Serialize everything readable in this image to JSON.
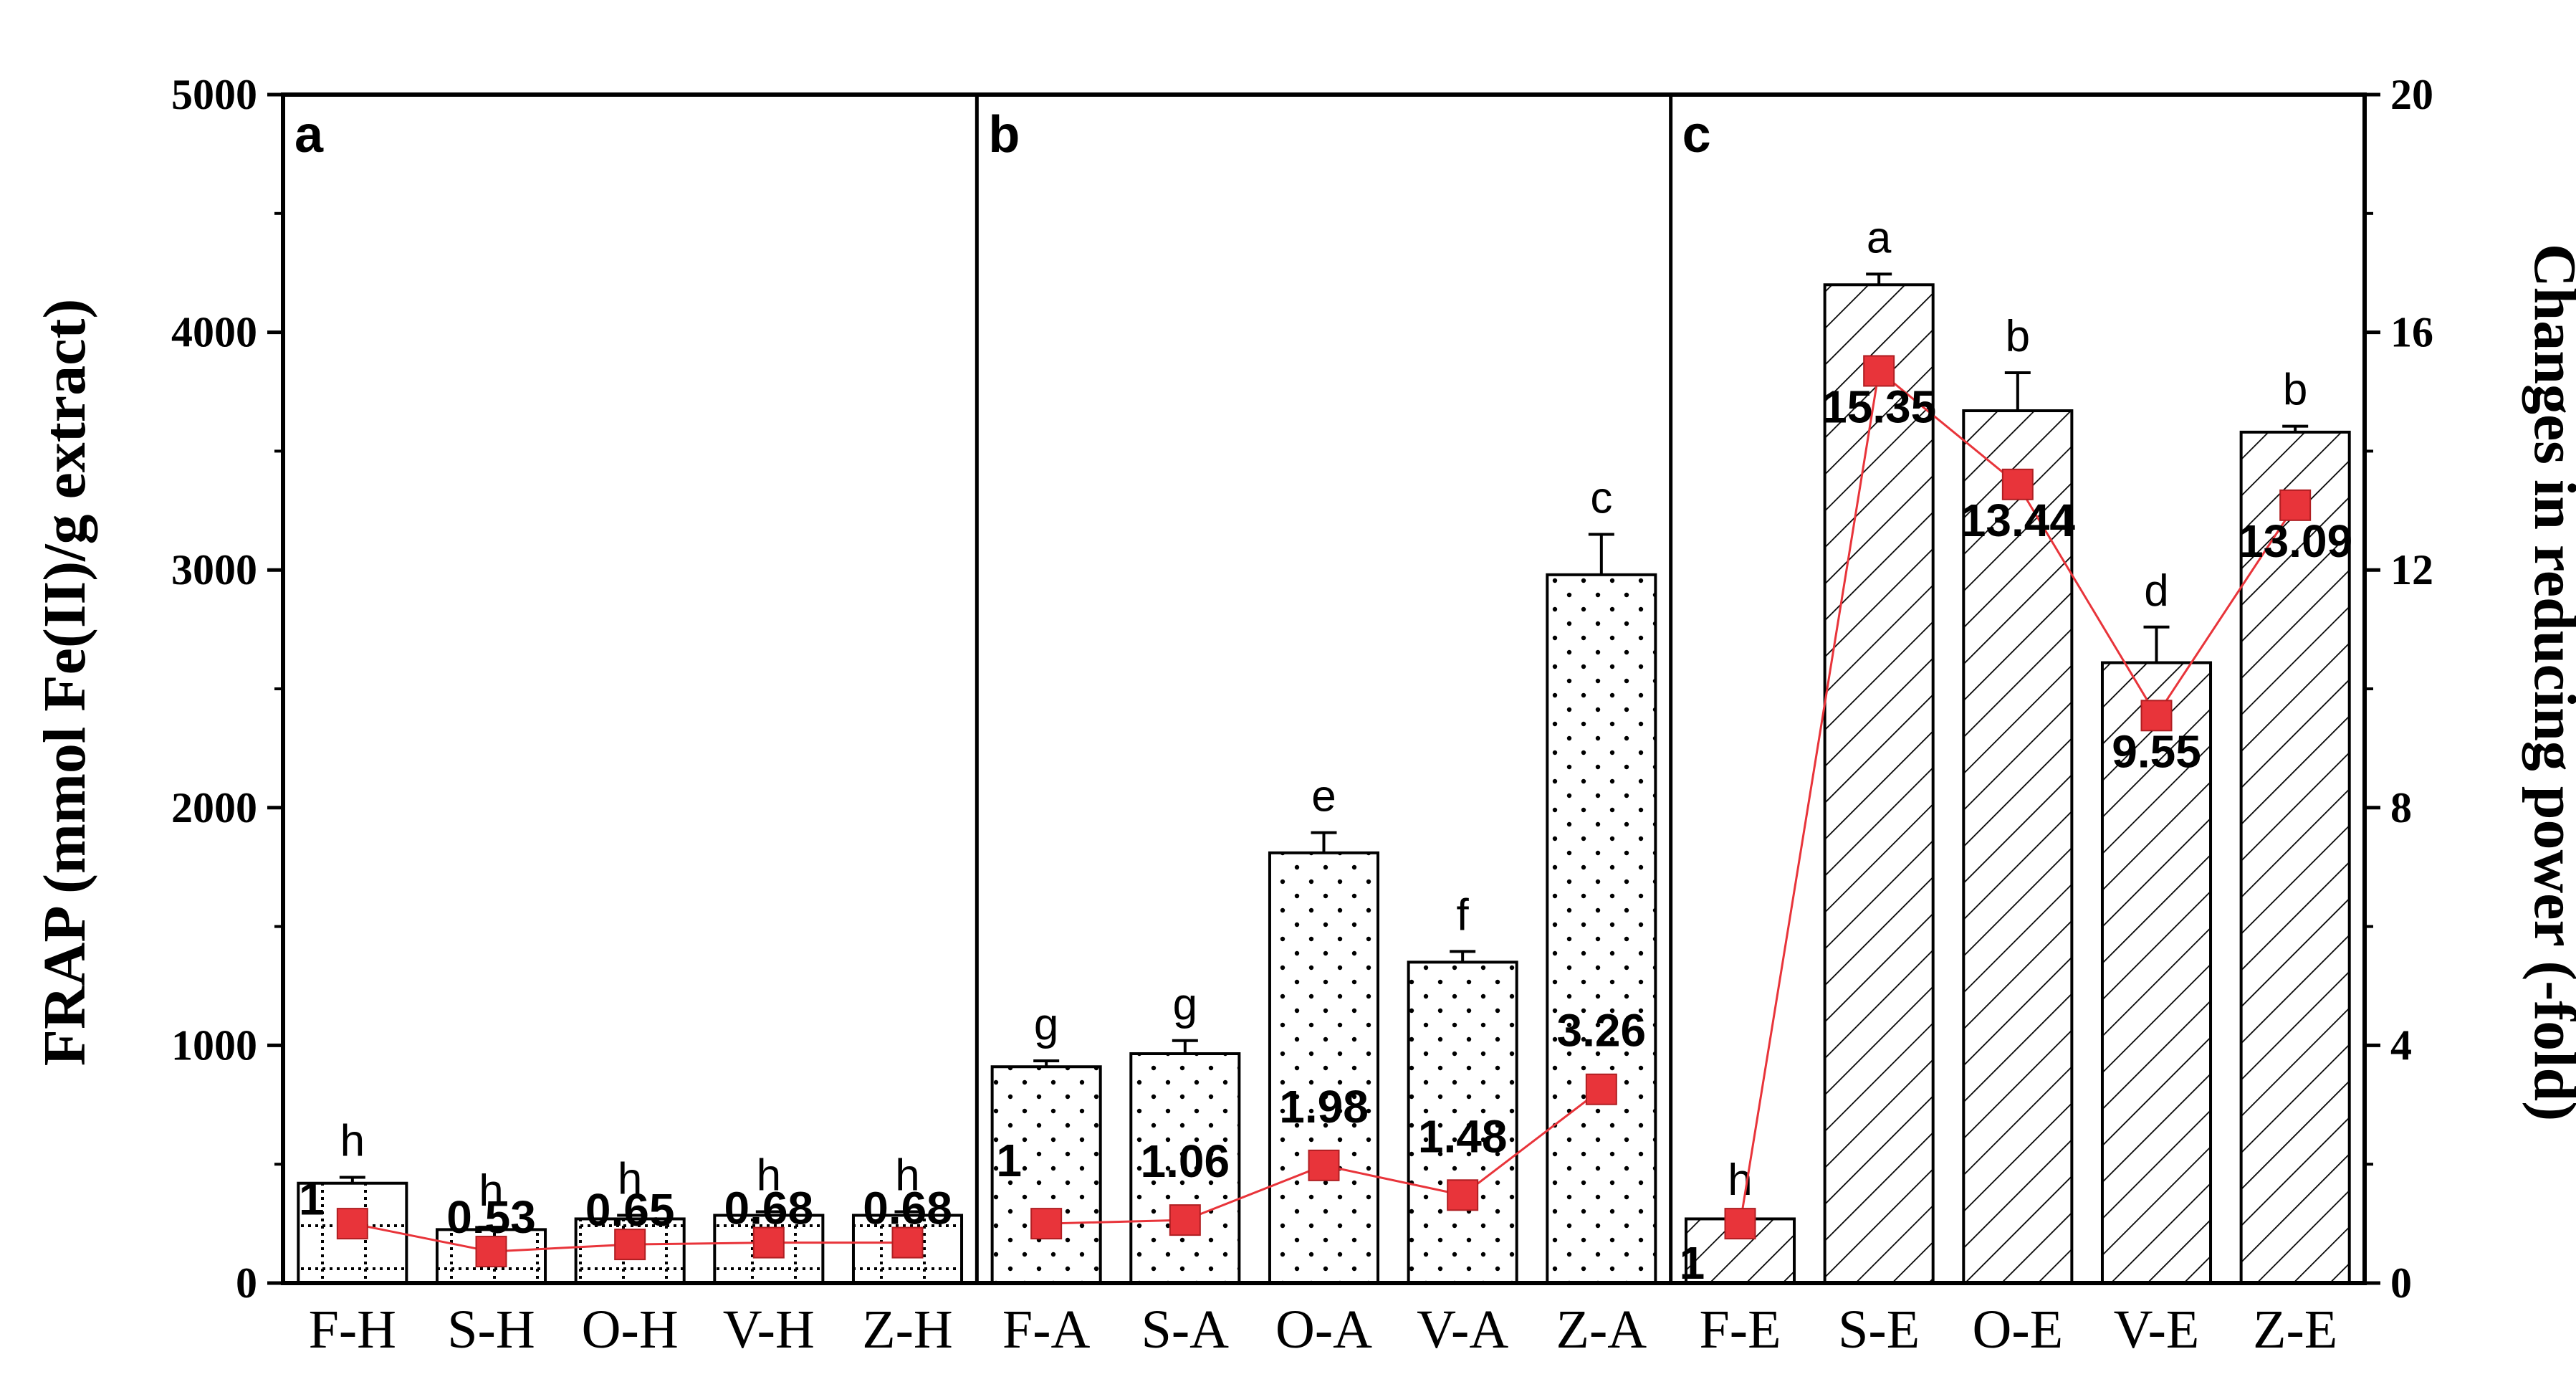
{
  "chart_data": {
    "type": "bar",
    "y_left": {
      "label": "FRAP (mmol Fe(II)/g extract)",
      "lim": [
        0,
        5000
      ],
      "ticks": [
        0,
        1000,
        2000,
        3000,
        4000,
        5000
      ]
    },
    "y_right": {
      "label": "Changes in reducing power (-fold)",
      "lim": [
        0,
        20
      ],
      "ticks": [
        0,
        4,
        8,
        12,
        16,
        20
      ]
    },
    "grid": false,
    "colors": {
      "bar_fill": "#ffffff",
      "bar_stroke": "#000000",
      "line": "#e8343a",
      "marker": "#e8343a"
    },
    "panels": [
      {
        "label": "a",
        "pattern": "dotted-grid",
        "categories": [
          "F-H",
          "S-H",
          "O-H",
          "V-H",
          "Z-H"
        ],
        "values": [
          420,
          225,
          270,
          285,
          285
        ],
        "errors": [
          25,
          10,
          15,
          15,
          15
        ],
        "letters": [
          "h",
          "h",
          "h",
          "h",
          "h"
        ],
        "fold_change": [
          1,
          0.53,
          0.65,
          0.68,
          0.68
        ],
        "fold_labels": [
          "1",
          "0.53",
          "0.65",
          "0.68",
          "0.68"
        ]
      },
      {
        "label": "b",
        "pattern": "dots",
        "categories": [
          "F-A",
          "S-A",
          "O-A",
          "V-A",
          "Z-A"
        ],
        "values": [
          910,
          965,
          1810,
          1350,
          2980
        ],
        "errors": [
          25,
          55,
          85,
          45,
          170
        ],
        "letters": [
          "g",
          "g",
          "e",
          "f",
          "c"
        ],
        "fold_change": [
          1,
          1.06,
          1.98,
          1.48,
          3.26
        ],
        "fold_labels": [
          "1",
          "1.06",
          "1.98",
          "1.48",
          "3.26"
        ]
      },
      {
        "label": "c",
        "pattern": "hatch",
        "categories": [
          "F-E",
          "S-E",
          "O-E",
          "V-E",
          "Z-E"
        ],
        "values": [
          270,
          4200,
          3670,
          2610,
          3580
        ],
        "errors": [
          10,
          45,
          160,
          150,
          25
        ],
        "letters": [
          "h",
          "a",
          "b",
          "d",
          "b"
        ],
        "fold_change": [
          1,
          15.35,
          13.44,
          9.55,
          13.09
        ],
        "fold_labels": [
          "1",
          "15.35",
          "13.44",
          "9.55",
          "13.09"
        ]
      }
    ]
  }
}
